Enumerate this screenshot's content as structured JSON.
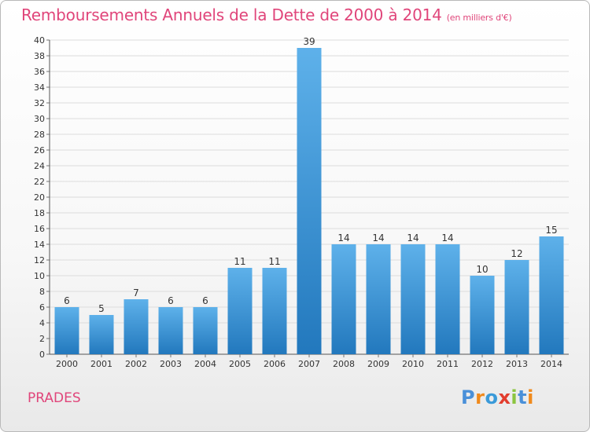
{
  "header": {
    "title": "Remboursements Annuels de la Dette de 2000 à 2014",
    "subtitle": "(en milliers d'€)"
  },
  "footer": {
    "commune": "PRADES",
    "logo_text": "Proxiti"
  },
  "colors": {
    "title": "#e0457a",
    "bar_light": "#5eb1ea",
    "bar_dark": "#2278bd",
    "grid": "#dcdcdc",
    "logo_letters": [
      "#4a90d9",
      "#f08a1c",
      "#3a9ad9",
      "#e23d2e",
      "#8bc540",
      "#4a90d9",
      "#f08a1c"
    ]
  },
  "chart_data": {
    "type": "bar",
    "title": "Remboursements Annuels de la Dette de 2000 à 2014",
    "subtitle": "(en milliers d'€)",
    "categories": [
      "2000",
      "2001",
      "2002",
      "2003",
      "2004",
      "2005",
      "2006",
      "2007",
      "2008",
      "2009",
      "2010",
      "2011",
      "2012",
      "2013",
      "2014"
    ],
    "values": [
      6,
      5,
      7,
      6,
      6,
      11,
      11,
      39,
      14,
      14,
      14,
      14,
      10,
      12,
      15
    ],
    "ylim": [
      0,
      40
    ],
    "ytick_step": 2,
    "grid": "horizontal",
    "data_labels": true,
    "xlabel": "",
    "ylabel": ""
  }
}
